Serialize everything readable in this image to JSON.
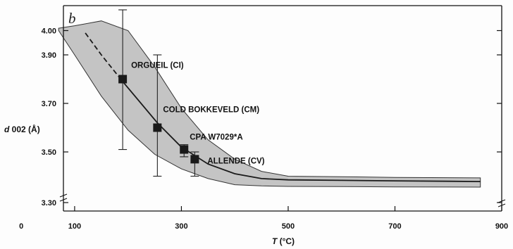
{
  "chart_data": {
    "type": "scatter",
    "panel_label": "b",
    "xlabel_var": "T",
    "xlabel_unit": "(°C)",
    "ylabel_var": "d",
    "ylabel_sub": "002",
    "ylabel_unit": "(Å)",
    "xlim": [
      0,
      900
    ],
    "ylim": [
      3.3,
      4.05
    ],
    "xticks": [
      0,
      100,
      300,
      500,
      700,
      900
    ],
    "yticks": [
      3.3,
      3.5,
      3.7,
      3.9,
      4.0
    ],
    "ytick_labels": [
      "3.30",
      "3.50",
      "3.70",
      "3.90",
      "4.00"
    ],
    "grid": false,
    "points": [
      {
        "label": "ORGUEIL (CI)",
        "x": 190,
        "y": 3.8,
        "y_err_low": 3.51,
        "y_err_high": 4.1
      },
      {
        "label": "COLD BOKKEVELD (CM)",
        "x": 255,
        "y": 3.6,
        "y_err_low": 3.4,
        "y_err_high": 3.9
      },
      {
        "label": "CPA W7029*A",
        "x": 305,
        "y": 3.51,
        "y_err_low": 3.48,
        "y_err_high": 3.53
      },
      {
        "label": "ALLENDE (CV)",
        "x": 325,
        "y": 3.47,
        "y_err_low": 3.4,
        "y_err_high": 3.5
      }
    ],
    "fit_curve": {
      "x": [
        120,
        150,
        190,
        255,
        300,
        350,
        400,
        450,
        500,
        600,
        700,
        800,
        860
      ],
      "y": [
        3.99,
        3.9,
        3.79,
        3.62,
        3.52,
        3.45,
        3.41,
        3.39,
        3.385,
        3.383,
        3.381,
        3.379,
        3.378
      ],
      "dashed_until_x": 170
    },
    "band": {
      "x": [
        70,
        100,
        150,
        200,
        250,
        300,
        350,
        400,
        450,
        500,
        600,
        700,
        860
      ],
      "lower": [
        4.0,
        3.9,
        3.73,
        3.59,
        3.49,
        3.43,
        3.39,
        3.365,
        3.36,
        3.358,
        3.357,
        3.356,
        3.355
      ],
      "upper": [
        4.01,
        4.02,
        4.04,
        4.0,
        3.85,
        3.68,
        3.55,
        3.47,
        3.42,
        3.4,
        3.398,
        3.395,
        3.393
      ]
    },
    "colors": {
      "band": "#c4c4c4",
      "line": "#1a1a1a",
      "marker": "#1a1a1a"
    }
  }
}
